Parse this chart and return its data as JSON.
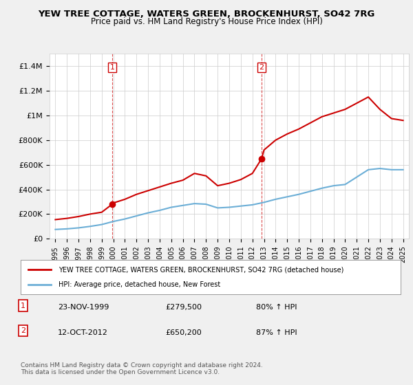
{
  "title": "YEW TREE COTTAGE, WATERS GREEN, BROCKENHURST, SO42 7RG",
  "subtitle": "Price paid vs. HM Land Registry's House Price Index (HPI)",
  "legend_line1": "YEW TREE COTTAGE, WATERS GREEN, BROCKENHURST, SO42 7RG (detached house)",
  "legend_line2": "HPI: Average price, detached house, New Forest",
  "footnote": "Contains HM Land Registry data © Crown copyright and database right 2024.\nThis data is licensed under the Open Government Licence v3.0.",
  "transaction1_label": "1",
  "transaction1_date": "23-NOV-1999",
  "transaction1_price": "£279,500",
  "transaction1_hpi": "80% ↑ HPI",
  "transaction2_label": "2",
  "transaction2_date": "12-OCT-2012",
  "transaction2_price": "£650,200",
  "transaction2_hpi": "87% ↑ HPI",
  "vline1_x": 1999.9,
  "vline2_x": 2012.8,
  "marker1_x": 1999.9,
  "marker1_y": 279500,
  "marker2_x": 2012.8,
  "marker2_y": 650200,
  "hpi_color": "#6baed6",
  "price_color": "#cc0000",
  "background_color": "#f0f0f0",
  "plot_bg_color": "#ffffff",
  "ylim": [
    0,
    1500000
  ],
  "xlim": [
    1994.5,
    2025.5
  ],
  "yticks": [
    0,
    200000,
    400000,
    600000,
    800000,
    1000000,
    1200000,
    1400000
  ],
  "ytick_labels": [
    "£0",
    "£200K",
    "£400K",
    "£600K",
    "£800K",
    "£1M",
    "£1.2M",
    "£1.4M"
  ],
  "xticks": [
    1995,
    1996,
    1997,
    1998,
    1999,
    2000,
    2001,
    2002,
    2003,
    2004,
    2005,
    2006,
    2007,
    2008,
    2009,
    2010,
    2011,
    2012,
    2013,
    2014,
    2015,
    2016,
    2017,
    2018,
    2019,
    2020,
    2021,
    2022,
    2023,
    2024,
    2025
  ],
  "hpi_x": [
    1995,
    1996,
    1997,
    1998,
    1999,
    2000,
    2001,
    2002,
    2003,
    2004,
    2005,
    2006,
    2007,
    2008,
    2009,
    2010,
    2011,
    2012,
    2013,
    2014,
    2015,
    2016,
    2017,
    2018,
    2019,
    2020,
    2021,
    2022,
    2023,
    2024,
    2025
  ],
  "hpi_y": [
    75000,
    80000,
    88000,
    100000,
    115000,
    140000,
    160000,
    185000,
    210000,
    230000,
    255000,
    270000,
    285000,
    280000,
    250000,
    255000,
    265000,
    275000,
    295000,
    320000,
    340000,
    360000,
    385000,
    410000,
    430000,
    440000,
    500000,
    560000,
    570000,
    560000,
    560000
  ],
  "price_x": [
    1995,
    1996,
    1997,
    1998,
    1999,
    1999.9,
    2000,
    2001,
    2002,
    2003,
    2004,
    2005,
    2006,
    2007,
    2008,
    2009,
    2010,
    2011,
    2012,
    2012.8,
    2013,
    2014,
    2015,
    2016,
    2017,
    2018,
    2019,
    2020,
    2021,
    2022,
    2023,
    2024,
    2025
  ],
  "price_y": [
    155000,
    165000,
    180000,
    200000,
    215000,
    279500,
    290000,
    320000,
    360000,
    390000,
    420000,
    450000,
    475000,
    530000,
    510000,
    430000,
    450000,
    480000,
    530000,
    650200,
    720000,
    800000,
    850000,
    890000,
    940000,
    990000,
    1020000,
    1050000,
    1100000,
    1150000,
    1050000,
    975000,
    960000
  ]
}
